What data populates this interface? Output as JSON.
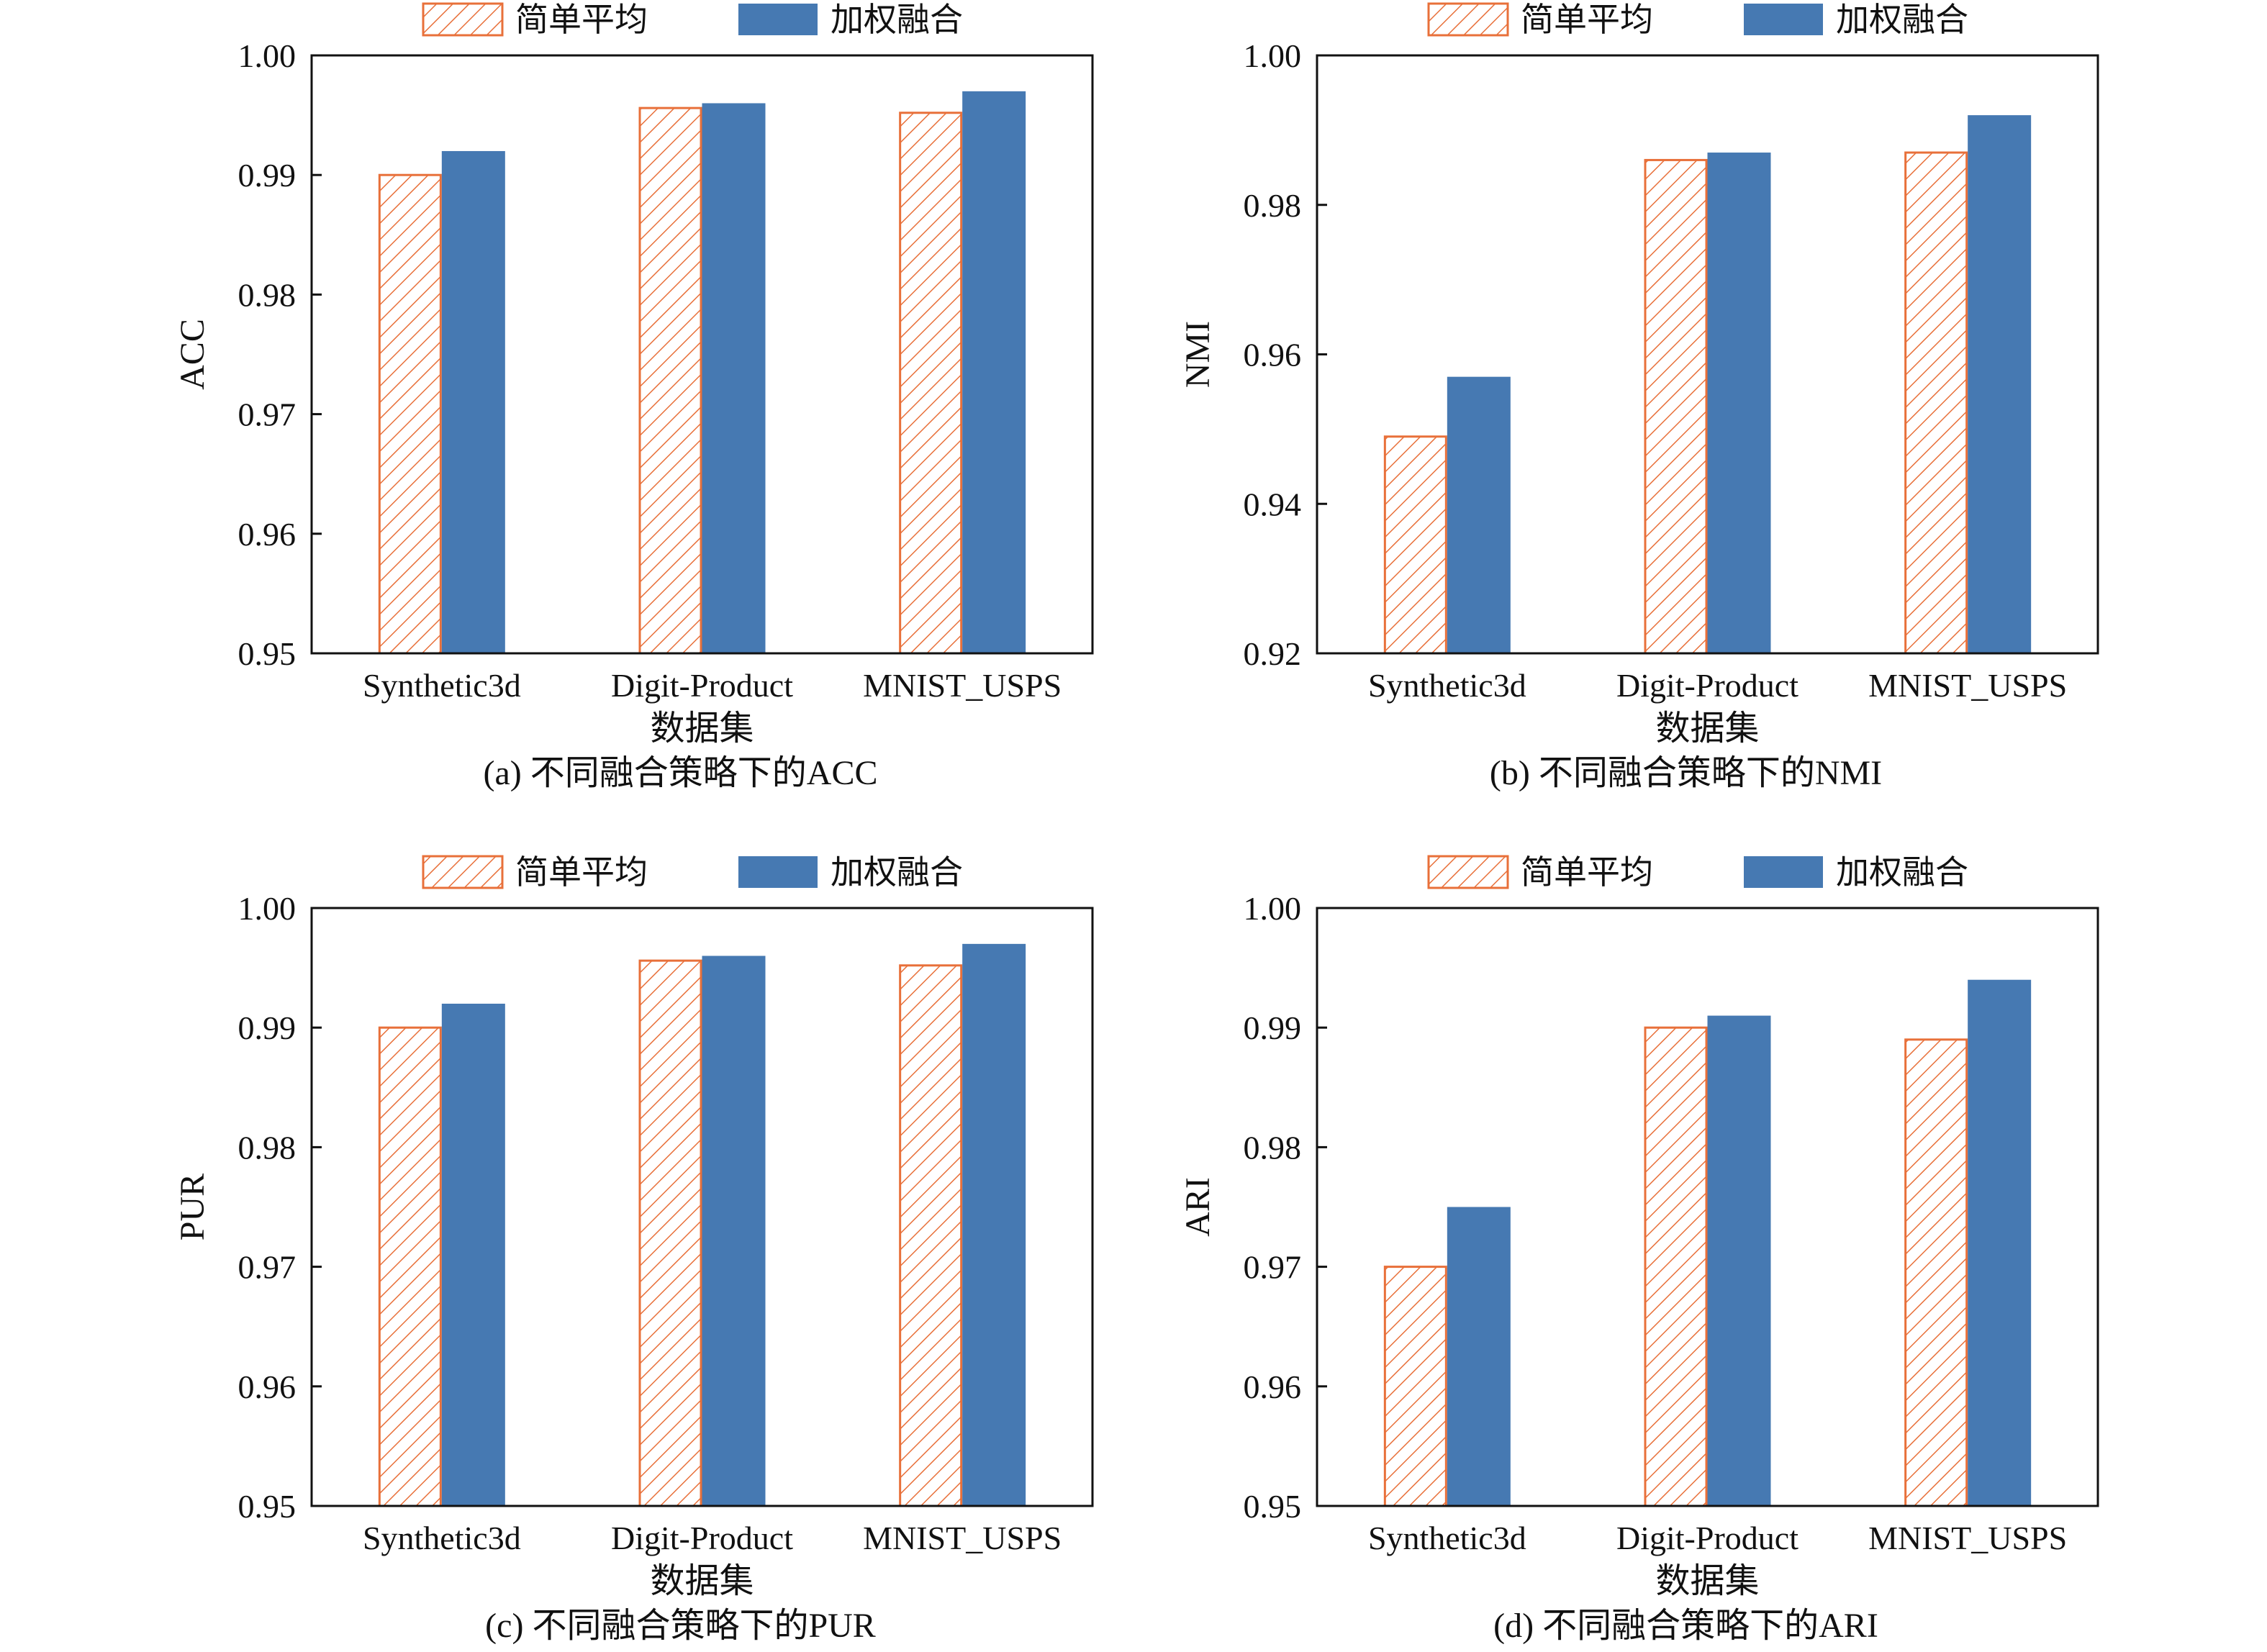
{
  "colors": {
    "simple": "#E8703A",
    "weighted": "#4679B2",
    "axis": "#111111"
  },
  "chart_data": [
    {
      "type": "bar",
      "panel": "a",
      "caption": "(a)  不同融合策略下的ACC",
      "categories": [
        "Synthetic3d",
        "Digit-Product",
        "MNIST_USPS"
      ],
      "xlabel": "数据集",
      "ylabel": "ACC",
      "ylim": [
        0.95,
        1.0
      ],
      "yticks": [
        0.95,
        0.96,
        0.97,
        0.98,
        0.99,
        1.0
      ],
      "ytick_labels": [
        "0.95",
        "0.96",
        "0.97",
        "0.98",
        "0.99",
        "1.00"
      ],
      "legend": [
        "简单平均",
        "加权融合"
      ],
      "legend_position": "top-center",
      "series": [
        {
          "name": "简单平均",
          "pattern": "hatched",
          "values": [
            0.99,
            0.9956,
            0.9952
          ]
        },
        {
          "name": "加权融合",
          "pattern": "solid",
          "values": [
            0.992,
            0.996,
            0.997
          ]
        }
      ]
    },
    {
      "type": "bar",
      "panel": "b",
      "caption": "(b)  不同融合策略下的NMI",
      "categories": [
        "Synthetic3d",
        "Digit-Product",
        "MNIST_USPS"
      ],
      "xlabel": "数据集",
      "ylabel": "NMI",
      "ylim": [
        0.92,
        1.0
      ],
      "yticks": [
        0.92,
        0.94,
        0.96,
        0.98,
        1.0
      ],
      "ytick_labels": [
        "0.92",
        "0.94",
        "0.96",
        "0.98",
        "1.00"
      ],
      "legend": [
        "简单平均",
        "加权融合"
      ],
      "legend_position": "top-center",
      "series": [
        {
          "name": "简单平均",
          "pattern": "hatched",
          "values": [
            0.949,
            0.986,
            0.987
          ]
        },
        {
          "name": "加权融合",
          "pattern": "solid",
          "values": [
            0.957,
            0.987,
            0.992
          ]
        }
      ]
    },
    {
      "type": "bar",
      "panel": "c",
      "caption": "(c)  不同融合策略下的PUR",
      "categories": [
        "Synthetic3d",
        "Digit-Product",
        "MNIST_USPS"
      ],
      "xlabel": "数据集",
      "ylabel": "PUR",
      "ylim": [
        0.95,
        1.0
      ],
      "yticks": [
        0.95,
        0.96,
        0.97,
        0.98,
        0.99,
        1.0
      ],
      "ytick_labels": [
        "0.95",
        "0.96",
        "0.97",
        "0.98",
        "0.99",
        "1.00"
      ],
      "legend": [
        "简单平均",
        "加权融合"
      ],
      "legend_position": "top-center",
      "series": [
        {
          "name": "简单平均",
          "pattern": "hatched",
          "values": [
            0.99,
            0.9956,
            0.9952
          ]
        },
        {
          "name": "加权融合",
          "pattern": "solid",
          "values": [
            0.992,
            0.996,
            0.997
          ]
        }
      ]
    },
    {
      "type": "bar",
      "panel": "d",
      "caption": "(d)  不同融合策略下的ARI",
      "categories": [
        "Synthetic3d",
        "Digit-Product",
        "MNIST_USPS"
      ],
      "xlabel": "数据集",
      "ylabel": "ARI",
      "ylim": [
        0.95,
        1.0
      ],
      "yticks": [
        0.95,
        0.96,
        0.97,
        0.98,
        0.99,
        1.0
      ],
      "ytick_labels": [
        "0.95",
        "0.96",
        "0.97",
        "0.98",
        "0.99",
        "1.00"
      ],
      "legend": [
        "简单平均",
        "加权融合"
      ],
      "legend_position": "top-center",
      "series": [
        {
          "name": "简单平均",
          "pattern": "hatched",
          "values": [
            0.97,
            0.99,
            0.989
          ]
        },
        {
          "name": "加权融合",
          "pattern": "solid",
          "values": [
            0.975,
            0.991,
            0.994
          ]
        }
      ]
    }
  ]
}
